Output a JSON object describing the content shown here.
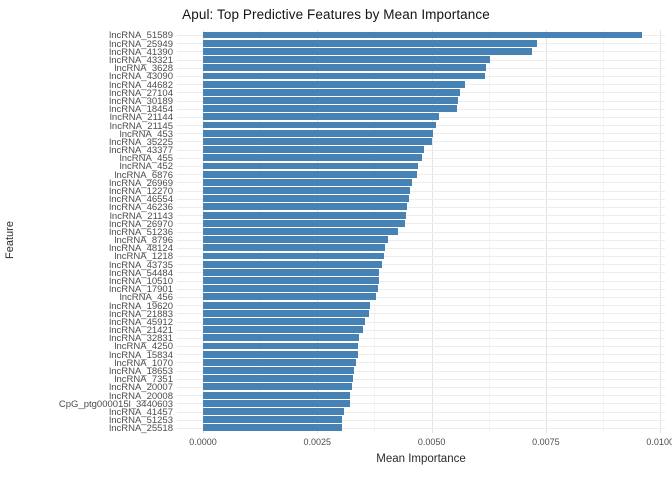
{
  "chart_data": {
    "type": "bar",
    "orientation": "horizontal",
    "title": "Apul: Top Predictive Features by Mean Importance",
    "xlabel": "Mean Importance",
    "ylabel": "Feature",
    "xlim": [
      0,
      0.01
    ],
    "x_tick_labels": [
      "0.0000",
      "0.0025",
      "0.0050",
      "0.0075",
      "0.0100"
    ],
    "x_tick_values": [
      0,
      0.0025,
      0.005,
      0.0075,
      0.01
    ],
    "grid": "major-and-minor",
    "legend": "none",
    "bar_color": "#4682B4",
    "categories": [
      "lncRNA_51589",
      "lncRNA_25949",
      "lncRNA_41390",
      "lncRNA_43321",
      "lncRNA_3628",
      "lncRNA_43090",
      "lncRNA_44682",
      "lncRNA_27104",
      "lncRNA_30189",
      "lncRNA_18454",
      "lncRNA_21144",
      "lncRNA_21145",
      "lncRNA_453",
      "lncRNA_35225",
      "lncRNA_43377",
      "lncRNA_455",
      "lncRNA_452",
      "lncRNA_6876",
      "lncRNA_26969",
      "lncRNA_12270",
      "lncRNA_46554",
      "lncRNA_46236",
      "lncRNA_21143",
      "lncRNA_26970",
      "lncRNA_51236",
      "lncRNA_8796",
      "lncRNA_48124",
      "lncRNA_1218",
      "lncRNA_43735",
      "lncRNA_54484",
      "lncRNA_10510",
      "lncRNA_17901",
      "lncRNA_456",
      "lncRNA_19620",
      "lncRNA_21883",
      "lncRNA_45912",
      "lncRNA_21421",
      "lncRNA_32831",
      "lncRNA_4250",
      "lncRNA_15834",
      "lncRNA_1070",
      "lncRNA_18653",
      "lncRNA_7351",
      "lncRNA_20007",
      "lncRNA_20008",
      "CpG_ptg000015l_3440603",
      "lncRNA_41457",
      "lncRNA_51253",
      "lncRNA_25518"
    ],
    "values": [
      0.0096,
      0.0073,
      0.0072,
      0.00628,
      0.0062,
      0.00616,
      0.00574,
      0.00563,
      0.00557,
      0.00555,
      0.00517,
      0.0051,
      0.00503,
      0.005,
      0.00484,
      0.0048,
      0.00471,
      0.00468,
      0.00457,
      0.00452,
      0.0045,
      0.00446,
      0.00444,
      0.00442,
      0.00427,
      0.00405,
      0.00398,
      0.00395,
      0.00392,
      0.00386,
      0.00384,
      0.00382,
      0.00378,
      0.00366,
      0.00362,
      0.00354,
      0.0035,
      0.00342,
      0.00339,
      0.00338,
      0.00334,
      0.0033,
      0.00328,
      0.00325,
      0.00322,
      0.00321,
      0.00309,
      0.00305,
      0.00303
    ]
  },
  "colors": {
    "bar": "#4682B4",
    "grid_major": "#e4e4e4",
    "grid_minor": "#f3f3f3",
    "axis_text": "#4d4d4d",
    "title_text": "#141414",
    "background": "#ffffff"
  }
}
